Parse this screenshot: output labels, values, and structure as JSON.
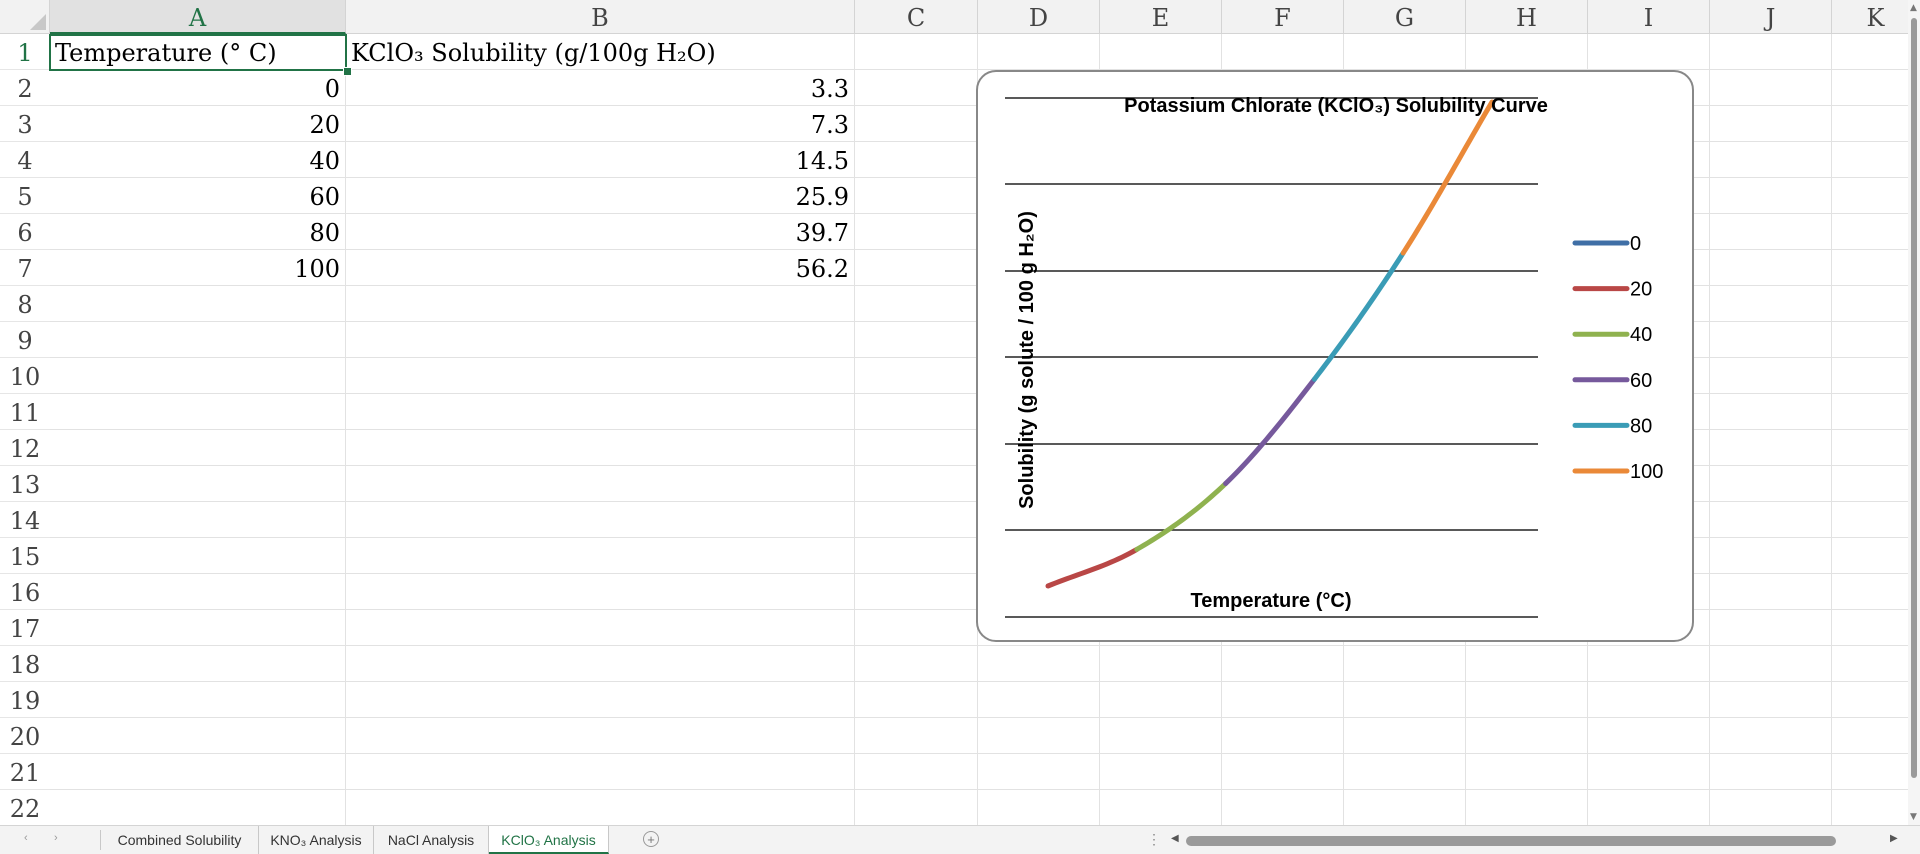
{
  "columns": [
    "A",
    "B",
    "C",
    "D",
    "E",
    "F",
    "G",
    "H",
    "I",
    "J",
    "K"
  ],
  "rows": [
    "1",
    "2",
    "3",
    "4",
    "5",
    "6",
    "7",
    "8",
    "9",
    "10",
    "11",
    "12",
    "13",
    "14",
    "15",
    "16",
    "17",
    "18",
    "19",
    "20",
    "21",
    "22"
  ],
  "selected_column": "A",
  "selected_row": "1",
  "cells": {
    "A1": "Temperature (° C)",
    "B1": "KClO₃ Solubility (g/100g H₂O)",
    "A2": "0",
    "B2": "3.3",
    "A3": "20",
    "B3": "7.3",
    "A4": "40",
    "B4": "14.5",
    "A5": "60",
    "B5": "25.9",
    "A6": "80",
    "B6": "39.7",
    "A7": "100",
    "B7": "56.2"
  },
  "chart_data": {
    "type": "line",
    "title": "Potassium Chlorate (KClO₃) Solubility Curve",
    "xlabel": "Temperature (°C)",
    "ylabel": "Solubility (g solute / 100 g H₂O)",
    "grid": true,
    "legend_position": "right",
    "x": [
      0,
      20,
      40,
      60,
      80,
      100
    ],
    "values": [
      3.3,
      7.3,
      14.5,
      25.9,
      39.7,
      56.2
    ],
    "series": [
      {
        "name": "0",
        "color": "#3f6fa6"
      },
      {
        "name": "20",
        "color": "#b94746"
      },
      {
        "name": "40",
        "color": "#8fb24f"
      },
      {
        "name": "60",
        "color": "#76599c"
      },
      {
        "name": "80",
        "color": "#3a9cb6"
      },
      {
        "name": "100",
        "color": "#ea8938"
      }
    ]
  },
  "sheet_tabs": [
    {
      "label": "Combined Solubility",
      "active": false
    },
    {
      "label": "KNO₃ Analysis",
      "active": false
    },
    {
      "label": "NaCl Analysis",
      "active": false
    },
    {
      "label": "KClO₃ Analysis",
      "active": true
    }
  ],
  "icons": {
    "prev_sheet": "chevron-left-icon",
    "next_sheet": "chevron-right-icon",
    "add_sheet": "plus-circle-icon",
    "scroll_left": "triangle-left-icon",
    "scroll_right": "triangle-right-icon"
  },
  "accent_color": "#217346"
}
